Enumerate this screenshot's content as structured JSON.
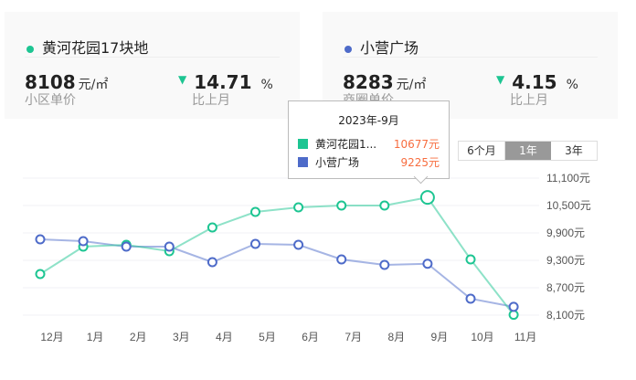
{
  "cards": [
    {
      "name": "黄河花园17块地",
      "color": "#1dc592",
      "price": "8108",
      "unit": "元/㎡",
      "price_label": "小区单价",
      "change": "14.71",
      "pct": "%",
      "change_label": "比上月"
    },
    {
      "name": "小营广场",
      "color": "#4e6bc9",
      "price": "8283",
      "unit": "元/㎡",
      "price_label": "商圈单价",
      "change": "4.15",
      "pct": "%",
      "change_label": "比上月"
    }
  ],
  "range": [
    "6个月",
    "1年",
    "3年"
  ],
  "tooltip": {
    "title": "2023年-9月",
    "rows": [
      {
        "name": "黄河花园1...",
        "value": "10677元"
      },
      {
        "name": "小营广场",
        "value": "9225元"
      }
    ]
  },
  "chart_data": {
    "type": "line",
    "categories": [
      "12月",
      "1月",
      "2月",
      "3月",
      "4月",
      "5月",
      "6月",
      "7月",
      "8月",
      "9月",
      "10月",
      "11月"
    ],
    "series": [
      {
        "name": "黄河花园17块地",
        "color": "#1dc592",
        "values": [
          9000,
          9600,
          9640,
          9500,
          10020,
          10360,
          10460,
          10500,
          10500,
          10677,
          9320,
          8108
        ]
      },
      {
        "name": "小营广场",
        "color": "#4e6bc9",
        "values": [
          9760,
          9720,
          9600,
          9600,
          9260,
          9660,
          9640,
          9320,
          9200,
          9225,
          8460,
          8283
        ]
      }
    ],
    "yticks": [
      "11,100元",
      "10,500元",
      "9,900元",
      "9,300元",
      "8,700元",
      "8,100元"
    ],
    "ytick_values": [
      11100,
      10500,
      9900,
      9300,
      8700,
      8100
    ],
    "ylim": [
      8100,
      11100
    ],
    "grid": true
  }
}
